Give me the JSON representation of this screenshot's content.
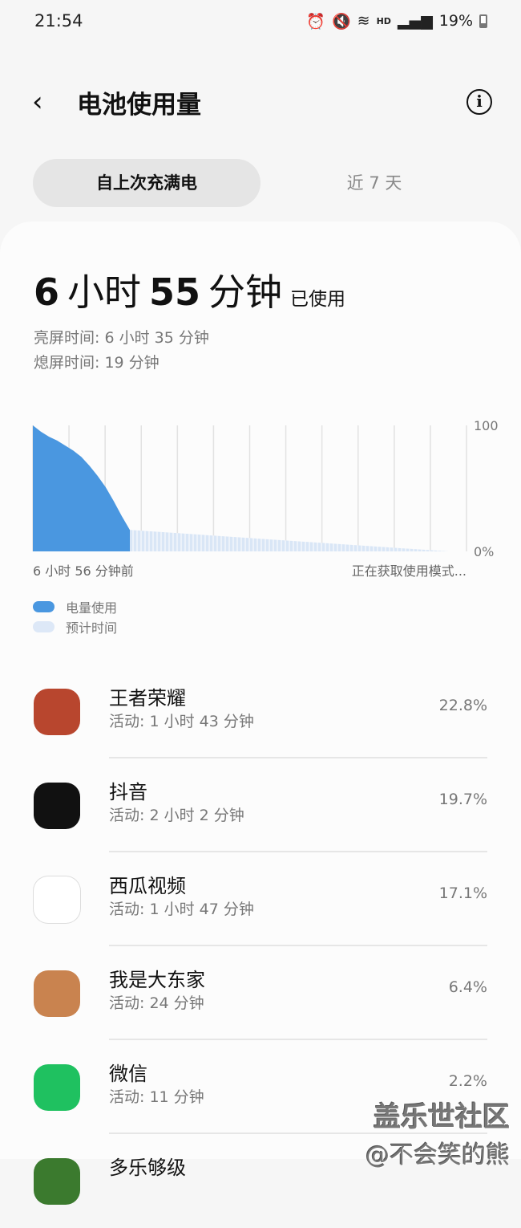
{
  "status": {
    "time": "21:54",
    "battery": "19%",
    "hd": "HD"
  },
  "header": {
    "title": "电池使用量",
    "back": "‹",
    "info": "i"
  },
  "tabs": [
    "自上次充满电",
    "近 7 天"
  ],
  "summary": {
    "hours": "6",
    "h_unit": "小时",
    "minutes": "55",
    "m_unit": "分钟",
    "used": "已使用",
    "screen_on": "亮屏时间:  6 小时 35 分钟",
    "screen_off": "熄屏时间:   19 分钟"
  },
  "chart_data": {
    "type": "area",
    "y_ticks": [
      "100",
      "0%"
    ],
    "ylim": [
      0,
      100
    ],
    "x_start_label": "6 小时 56 分钟前",
    "x_end_label": "正在获取使用模式...",
    "grid": "vertical",
    "series": [
      {
        "name": "电量使用",
        "color": "#4a97e0",
        "values": [
          100,
          95,
          91,
          88,
          84,
          80,
          75,
          68,
          60,
          51,
          40,
          28,
          17
        ]
      },
      {
        "name": "预计时间",
        "color": "#d9e6f6",
        "values": [
          17,
          0
        ]
      }
    ]
  },
  "apps": [
    {
      "name": "王者荣耀",
      "activity": "活动: 1 小时 43 分钟",
      "percent": "22.8%",
      "color": "#b8462e"
    },
    {
      "name": "抖音",
      "activity": "活动: 2 小时 2 分钟",
      "percent": "19.7%",
      "color": "#111111"
    },
    {
      "name": "西瓜视频",
      "activity": "活动: 1 小时 47 分钟",
      "percent": "17.1%",
      "color": "#ffffff"
    },
    {
      "name": "我是大东家",
      "activity": "活动: 24 分钟",
      "percent": "6.4%",
      "color": "#c9834f"
    },
    {
      "name": "微信",
      "activity": "活动: 11 分钟",
      "percent": "2.2%",
      "color": "#1fc160"
    },
    {
      "name": "多乐够级",
      "activity": "",
      "percent": "",
      "color": "#3b7a2e"
    }
  ],
  "watermark": {
    "line1": "盖乐世社区",
    "line2": "@不会笑的熊"
  }
}
